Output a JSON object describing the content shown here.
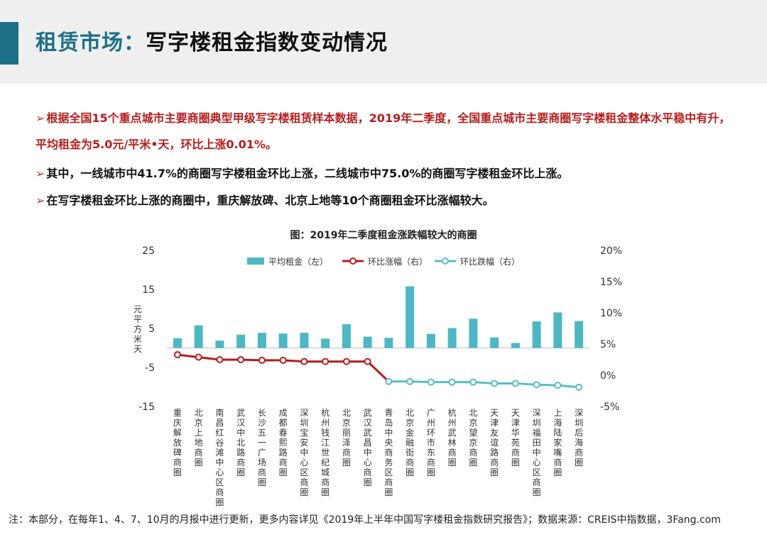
{
  "header": {
    "title_prefix": "租赁市场：",
    "title_main": "写字楼租金指数变动情况"
  },
  "bullets": [
    {
      "arrow": "➢",
      "text": "根据全国15个重点城市主要商圈典型甲级写字楼租赁样本数据，2019年二季度，全国重点城市主要商圈写字楼租金整体水平稳中有升，",
      "style": "red"
    },
    {
      "arrow": "",
      "text": "平均租金为5.0元/平米•天，环比上涨0.01%。",
      "style": "red"
    },
    {
      "arrow": "➢",
      "text": "其中，一线城市中41.7%的商圈写字楼租金环比上涨，二线城市中75.0%的商圈写字楼租金环比上涨。",
      "style": "dark"
    },
    {
      "arrow": "➢",
      "text": "在写字楼租金环比上涨的商圈中，重庆解放碑、北京上地等10个商圈租金环比涨幅较大。",
      "style": "dark"
    }
  ],
  "chart_data": {
    "type": "bar",
    "title": "图：2019年二季度租金涨跌幅较大的商圈",
    "ylabel": "元/平方米·天",
    "ylabel_display": "元\n平\n方\n米\n天",
    "ylim": [
      -15,
      25
    ],
    "yticks": [
      25,
      15,
      5,
      -5,
      -15
    ],
    "y2lim": [
      -5,
      20
    ],
    "y2ticks": [
      "20%",
      "15%",
      "10%",
      "5%",
      "0%",
      "-5%"
    ],
    "y2tick_values": [
      20,
      15,
      10,
      5,
      0,
      -5
    ],
    "categories": [
      "重庆解放碑商圈",
      "北京上地商圈",
      "南昌红谷滩中心区商圈",
      "武汉中北路商圈",
      "长沙五一广场商圈",
      "成都春熙路商圈",
      "深圳宝安中心区商圈",
      "杭州钱江世纪城商圈",
      "北京丽泽商圈",
      "武汉武昌中心商圈",
      "青岛中央商务区商圈",
      "北京金融街商圈",
      "广州环市东商圈",
      "杭州武林商圈",
      "北京望京商圈",
      "天津友谊路商圈",
      "天津华苑商圈",
      "深圳福田中心区商圈",
      "上海陆家嘴商圈",
      "深圳后海商圈"
    ],
    "series": [
      {
        "name": "平均租金（左）",
        "kind": "bar",
        "axis": "left",
        "color": "#4bb8c4",
        "values": [
          2.5,
          5.8,
          1.9,
          3.4,
          3.9,
          3.7,
          3.9,
          2.4,
          6.1,
          2.9,
          2.6,
          15.8,
          3.6,
          5.1,
          7.5,
          2.7,
          1.3,
          6.8,
          9.1,
          6.9
        ]
      },
      {
        "name": "环比涨幅（右）",
        "kind": "line",
        "axis": "right",
        "color": "#b71c1c",
        "values": [
          3.3,
          2.9,
          2.5,
          2.5,
          2.4,
          2.4,
          2.2,
          2.2,
          2.2,
          2.2,
          null,
          null,
          null,
          null,
          null,
          null,
          null,
          null,
          null,
          null
        ]
      },
      {
        "name": "环比跌幅（右）",
        "kind": "line",
        "axis": "right",
        "color": "#5bbcc7",
        "values": [
          null,
          null,
          null,
          null,
          null,
          null,
          null,
          null,
          null,
          null,
          -1.0,
          -1.0,
          -1.1,
          -1.1,
          -1.1,
          -1.3,
          -1.3,
          -1.5,
          -1.6,
          -1.9
        ]
      }
    ],
    "legend_position": "top",
    "grid": false
  },
  "footnote": "注：本部分，在每年1、4、7、10月的月报中进行更新，更多内容详见《2019年上半年中国写字楼租金指数研究报告》；数据来源：CREIS中指数据，3Fang.com"
}
